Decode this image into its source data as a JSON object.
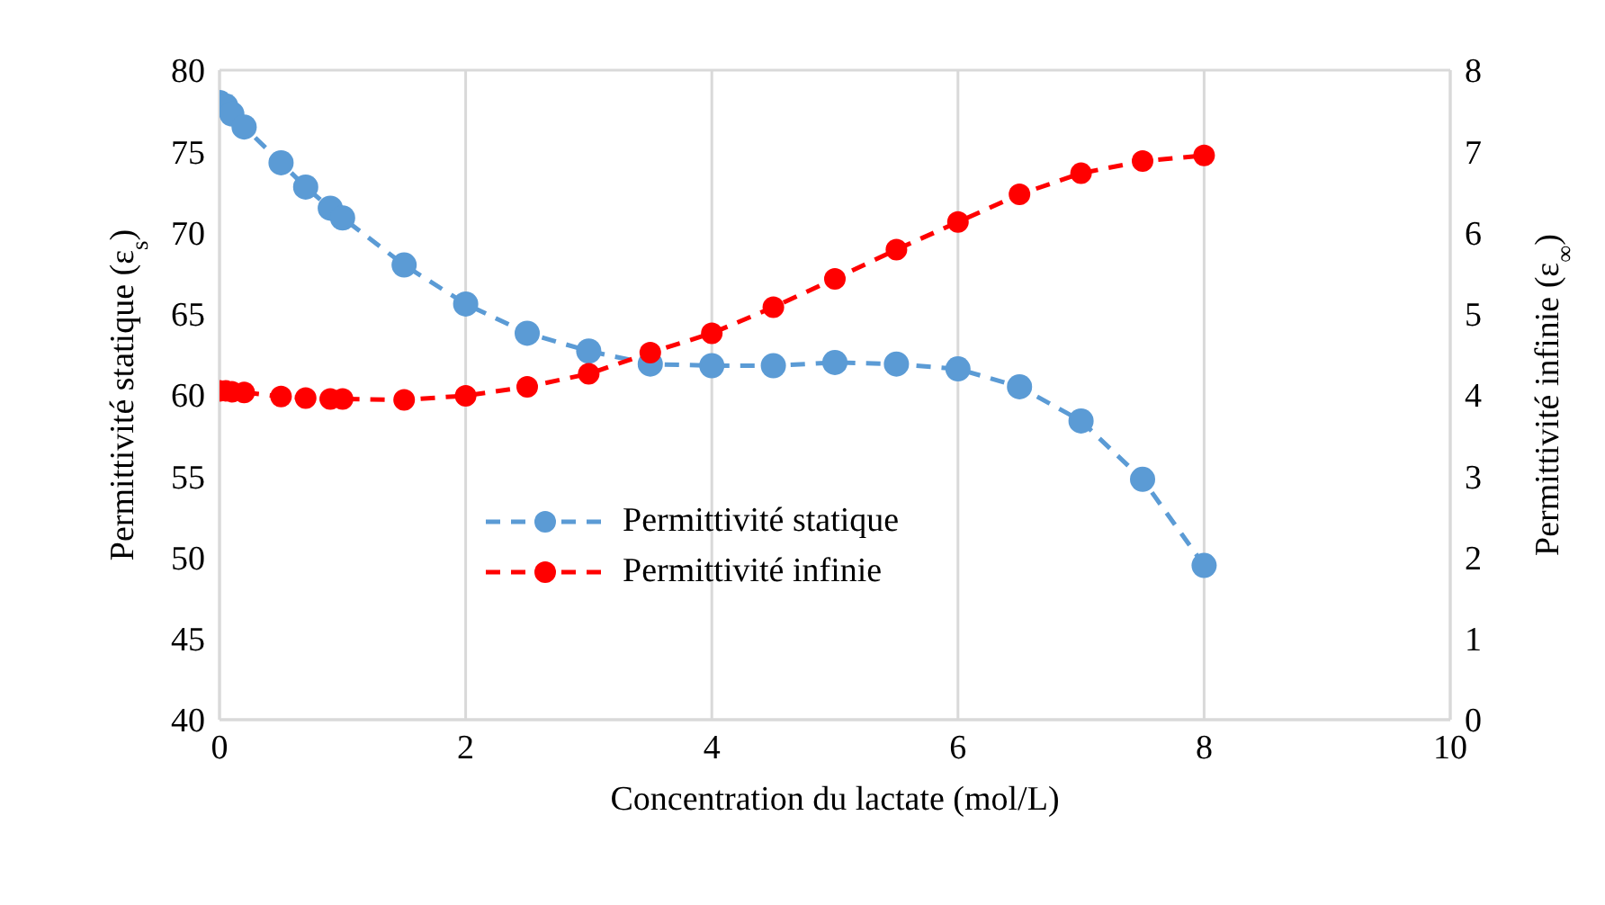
{
  "chart_data": {
    "type": "line",
    "xlabel": "Concentration du lactate  (mol/L)",
    "ylabel": "Permittivité statique (ε$_{s}$)",
    "y2label": "Permittivité infinie (ε$_{∞}$)",
    "x": [
      0,
      0.05,
      0.1,
      0.2,
      0.5,
      0.7,
      0.9,
      1.0,
      1.5,
      2,
      2.5,
      3,
      3.5,
      4,
      4.5,
      5,
      5.5,
      6,
      6.5,
      7,
      7.5,
      8
    ],
    "series": [
      {
        "name": "Permittivité statique",
        "color": "#5b9bd5",
        "values": [
          78,
          77.8,
          77.3,
          76.5,
          74.3,
          72.8,
          71.5,
          70.9,
          68,
          65.6,
          63.8,
          62.7,
          61.9,
          61.8,
          61.8,
          62,
          61.9,
          61.6,
          60.5,
          58.4,
          54.8,
          49.5
        ]
      },
      {
        "name": "Permittivité infinie",
        "color": "#ff0000",
        "axis": "y2",
        "values": [
          4.05,
          4.05,
          4.04,
          4.03,
          3.98,
          3.96,
          3.95,
          3.95,
          3.94,
          3.99,
          4.1,
          4.26,
          4.52,
          4.76,
          5.08,
          5.43,
          5.79,
          6.13,
          6.47,
          6.73,
          6.88,
          6.95
        ]
      }
    ],
    "xlim": [
      0,
      10
    ],
    "xticks": [
      0,
      2,
      4,
      6,
      8,
      10
    ],
    "ylim": [
      40,
      80
    ],
    "yticks": [
      40,
      45,
      50,
      55,
      60,
      65,
      70,
      75,
      80
    ],
    "y2lim": [
      0,
      8
    ],
    "y2ticks": [
      0,
      1,
      2,
      3,
      4,
      5,
      6,
      7,
      8
    ],
    "grid": true,
    "legend": "bottom",
    "marker": "circle",
    "line_style": "dashed"
  }
}
